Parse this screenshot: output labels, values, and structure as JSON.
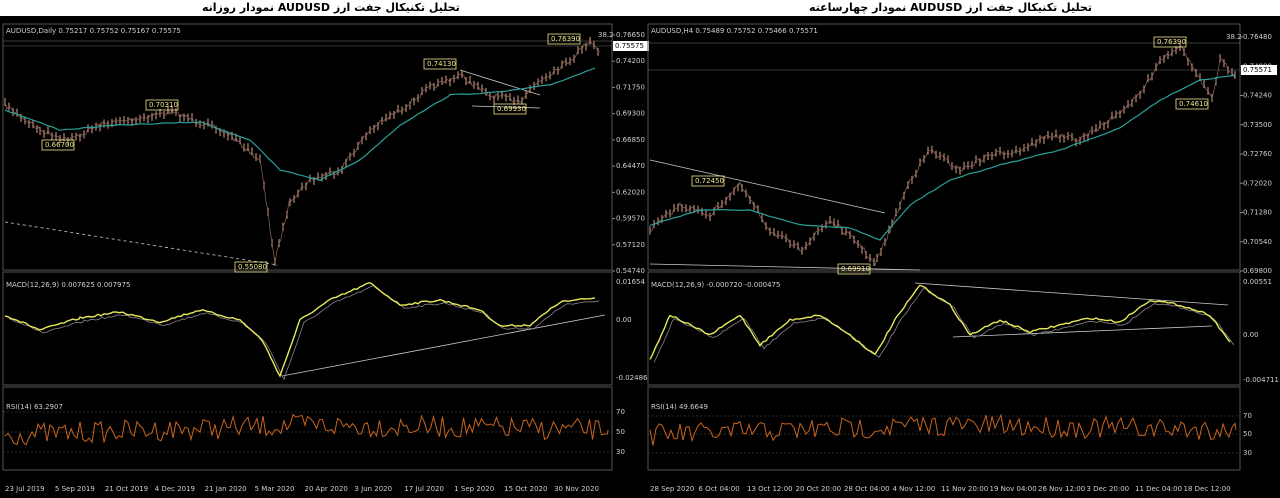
{
  "panels": [
    {
      "title": "تحلیل تکنیکال جفت ارز AUDUSD نمودار روزانه",
      "header": "AUDUSD,Daily  0.75217 0.75752 0.75167 0.75575",
      "price_labels": [
        "0.76650",
        "0.74200",
        "0.71750",
        "0.69300",
        "0.66850",
        "0.64470",
        "0.62020",
        "0.59570",
        "0.57120",
        "0.54740"
      ],
      "current_price": "0.75575",
      "fib_label": "38.2",
      "annotations": [
        "0.76390",
        "0.74130",
        "0.70310",
        "0.66700",
        "0.69930",
        "0.55080"
      ],
      "macd": {
        "header": "MACD(12,26,9)  0.007625  0.007975",
        "levels": [
          "0.01654",
          "0.00",
          "-0.02486"
        ]
      },
      "rsi": {
        "header": "RSI(14)  63.2907",
        "levels": [
          "70",
          "50",
          "30"
        ]
      },
      "dates": [
        "23 Jul 2019",
        "5 Sep 2019",
        "21 Oct 2019",
        "4 Dec 2019",
        "21 Jan 2020",
        "5 Mar 2020",
        "20 Apr 2020",
        "3 Jun 2020",
        "17 Jul 2020",
        "1 Sep 2020",
        "15 Oct 2020",
        "30 Nov 2020"
      ]
    },
    {
      "title": "تحلیل تکنیکال جفت ارز AUDUSD نمودار چهارساعته",
      "header": "AUDUSD,H4  0.75489 0.75752 0.75466 0.75571",
      "price_labels": [
        "0.76480",
        "0.74980",
        "0.74240",
        "0.73500",
        "0.72760",
        "0.72020",
        "0.71280",
        "0.70540",
        "0.69800"
      ],
      "current_price": "0.75571",
      "fib_label": "38.2",
      "annotations": [
        "0.76390",
        "0.74610",
        "0.72450",
        "0.69910"
      ],
      "macd": {
        "header": "MACD(12,26,9)  -0.000720  -0.000475",
        "levels": [
          "0.00551",
          "0.00",
          "-0.004711"
        ]
      },
      "rsi": {
        "header": "RSI(14)  49.6649",
        "levels": [
          "70",
          "50",
          "30"
        ]
      },
      "dates": [
        "28 Sep 2020",
        "6 Oct 04:00",
        "13 Oct 12:00",
        "20 Oct 20:00",
        "28 Oct 04:00",
        "4 Nov 12:00",
        "11 Nov 20:00",
        "19 Nov 04:00",
        "26 Nov 12:00",
        "3 Dec 20:00",
        "11 Dec 04:00",
        "18 Dec 12:00"
      ]
    }
  ]
}
